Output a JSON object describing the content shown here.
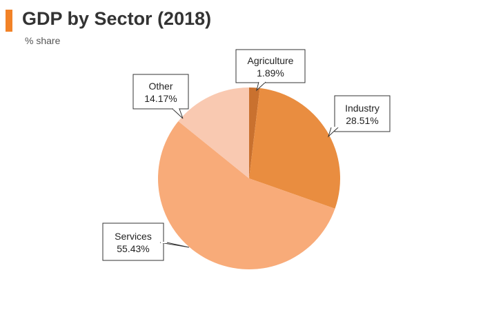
{
  "header": {
    "title": "GDP by Sector (2018)",
    "subtitle": "% share"
  },
  "colors": {
    "accent": "#f28227",
    "agriculture": "#c9712f",
    "industry": "#e98d40",
    "services": "#f8ab79",
    "other": "#f9c9b1"
  },
  "chart_data": {
    "type": "pie",
    "title": "GDP by Sector (2018)",
    "subtitle": "% share",
    "start_angle_deg": 0,
    "direction": "clockwise",
    "legend": "none",
    "slices": [
      {
        "label": "Agriculture",
        "value": 1.89,
        "value_label": "1.89%",
        "color": "#c9712f"
      },
      {
        "label": "Industry",
        "value": 28.51,
        "value_label": "28.51%",
        "color": "#e98d40"
      },
      {
        "label": "Services",
        "value": 55.43,
        "value_label": "55.43%",
        "color": "#f8ab79"
      },
      {
        "label": "Other",
        "value": 14.17,
        "value_label": "14.17%",
        "color": "#f9c9b1"
      }
    ]
  }
}
